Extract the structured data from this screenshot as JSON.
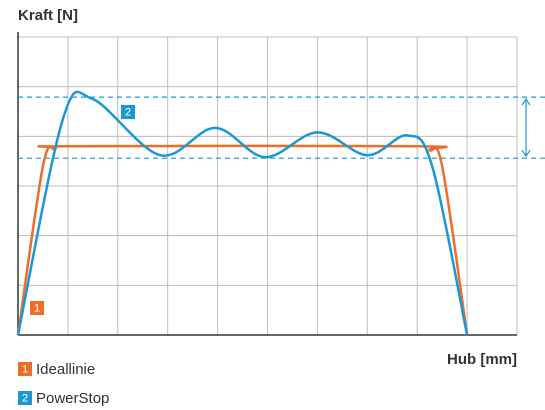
{
  "chart_data": {
    "type": "line",
    "title": "Kraft [N]",
    "x_label": "Hub [mm]",
    "xlim": [
      0,
      10
    ],
    "ylim": [
      0,
      6
    ],
    "xticks": [
      0,
      1,
      2,
      3,
      4,
      5,
      6,
      7,
      8,
      9,
      10
    ],
    "yticks": [
      0,
      1,
      2,
      3,
      4,
      5,
      6
    ],
    "grid": true,
    "reference_lines": [
      4.79,
      3.56
    ],
    "series": [
      {
        "name": "Ideallinie",
        "label": "1",
        "color": "#ec6e2a",
        "x": [
          0,
          0.5,
          0.75,
          1,
          8,
          8.25,
          8.5,
          9
        ],
        "values": [
          0,
          3.4,
          3.75,
          3.8,
          3.8,
          3.72,
          3.4,
          0
        ]
      },
      {
        "name": "PowerStop",
        "label": "2",
        "color": "#1b98d4",
        "x": [
          0,
          0.9,
          1.5,
          2.85,
          3.95,
          4.95,
          6.0,
          7.0,
          7.8,
          8.3,
          9
        ],
        "values": [
          0,
          4.35,
          4.75,
          3.62,
          4.17,
          3.58,
          4.08,
          3.62,
          4.02,
          3.4,
          0
        ]
      }
    ]
  }
}
